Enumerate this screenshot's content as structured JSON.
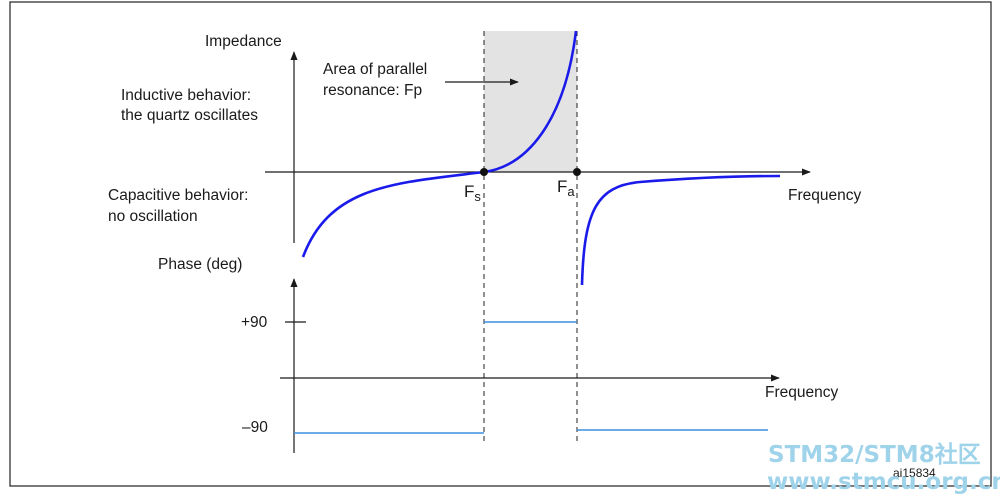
{
  "figure": {
    "impedance_axis_label": "Impedance",
    "frequency_label_top": "Frequency",
    "frequency_label_bottom": "Frequency",
    "phase_axis_label": "Phase (deg)",
    "inductive": [
      "Inductive behavior:",
      "the quartz oscillates"
    ],
    "capacitive": [
      "Capacitive behavior:",
      "no oscillation"
    ],
    "annotation": [
      "Area of parallel",
      "resonance: Fp"
    ],
    "fs_label": {
      "main": "F",
      "sub": "s"
    },
    "fa_label": {
      "main": "F",
      "sub": "a"
    },
    "plus90": "+90",
    "minus90": "–90",
    "figure_id": "ai15834"
  },
  "watermark": {
    "line1": "STM32/STM8社区",
    "line2": "www.stmcu.org.cn"
  },
  "colors": {
    "curve": "#1a1aeb",
    "phase_line": "#3d8fe0",
    "shade": "#e3e3e3",
    "watermark": "#9fd3ea"
  }
}
